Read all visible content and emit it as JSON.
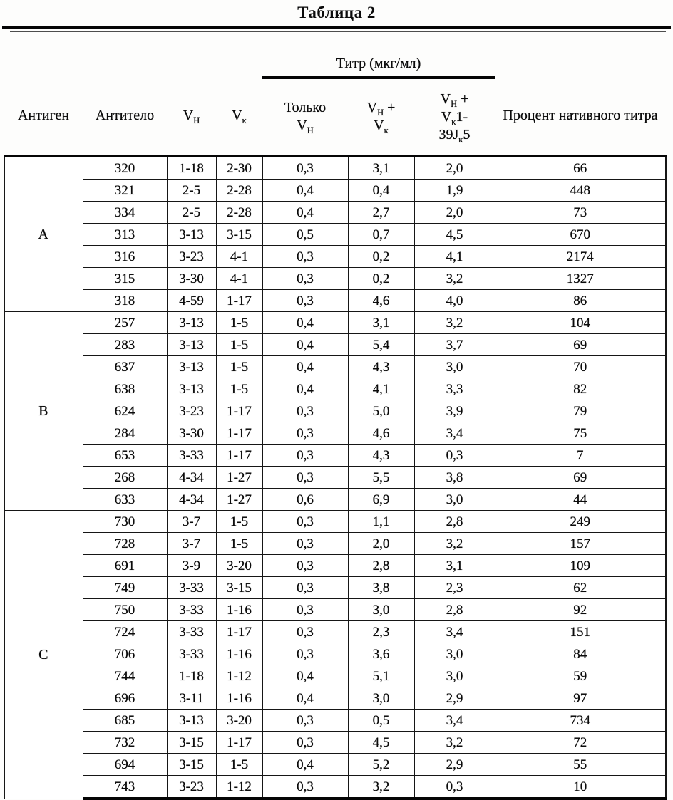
{
  "title": "Таблица 2",
  "table": {
    "header": {
      "antigen_label": "Антиген",
      "antibody_label": "Антитело",
      "vh_label": [
        [
          {
            "t": "V"
          },
          {
            "t": "H",
            "sub": true
          }
        ]
      ],
      "vk_label": [
        [
          {
            "t": "V"
          },
          {
            "t": "κ",
            "sub": true
          }
        ]
      ],
      "titer_group_label": "Титр (мкг/мл)",
      "titer_col_only_vh": [
        [
          {
            "t": "Только"
          }
        ],
        [
          {
            "t": "V"
          },
          {
            "t": "H",
            "sub": true
          }
        ]
      ],
      "titer_col_vh_vk": [
        [
          {
            "t": "V"
          },
          {
            "t": "H",
            "sub": true
          },
          {
            "t": " +"
          }
        ],
        [
          {
            "t": "V"
          },
          {
            "t": "κ",
            "sub": true
          }
        ]
      ],
      "titer_col_vh_vk1_39jk5": [
        [
          {
            "t": "V"
          },
          {
            "t": "H",
            "sub": true
          },
          {
            "t": " +"
          }
        ],
        [
          {
            "t": "V"
          },
          {
            "t": "κ",
            "sub": true
          },
          {
            "t": "1-"
          }
        ],
        [
          {
            "t": "39J"
          },
          {
            "t": "κ",
            "sub": true
          },
          {
            "t": "5"
          }
        ]
      ],
      "percent_label": "Процент нативного титра"
    },
    "groups": [
      {
        "antigen": "A",
        "rows": [
          [
            "320",
            "1-18",
            "2-30",
            "0,3",
            "3,1",
            "2,0",
            "66"
          ],
          [
            "321",
            "2-5",
            "2-28",
            "0,4",
            "0,4",
            "1,9",
            "448"
          ],
          [
            "334",
            "2-5",
            "2-28",
            "0,4",
            "2,7",
            "2,0",
            "73"
          ],
          [
            "313",
            "3-13",
            "3-15",
            "0,5",
            "0,7",
            "4,5",
            "670"
          ],
          [
            "316",
            "3-23",
            "4-1",
            "0,3",
            "0,2",
            "4,1",
            "2174"
          ],
          [
            "315",
            "3-30",
            "4-1",
            "0,3",
            "0,2",
            "3,2",
            "1327"
          ],
          [
            "318",
            "4-59",
            "1-17",
            "0,3",
            "4,6",
            "4,0",
            "86"
          ]
        ]
      },
      {
        "antigen": "B",
        "rows": [
          [
            "257",
            "3-13",
            "1-5",
            "0,4",
            "3,1",
            "3,2",
            "104"
          ],
          [
            "283",
            "3-13",
            "1-5",
            "0,4",
            "5,4",
            "3,7",
            "69"
          ],
          [
            "637",
            "3-13",
            "1-5",
            "0,4",
            "4,3",
            "3,0",
            "70"
          ],
          [
            "638",
            "3-13",
            "1-5",
            "0,4",
            "4,1",
            "3,3",
            "82"
          ],
          [
            "624",
            "3-23",
            "1-17",
            "0,3",
            "5,0",
            "3,9",
            "79"
          ],
          [
            "284",
            "3-30",
            "1-17",
            "0,3",
            "4,6",
            "3,4",
            "75"
          ],
          [
            "653",
            "3-33",
            "1-17",
            "0,3",
            "4,3",
            "0,3",
            "7"
          ],
          [
            "268",
            "4-34",
            "1-27",
            "0,3",
            "5,5",
            "3,8",
            "69"
          ],
          [
            "633",
            "4-34",
            "1-27",
            "0,6",
            "6,9",
            "3,0",
            "44"
          ]
        ]
      },
      {
        "antigen": "C",
        "rows": [
          [
            "730",
            "3-7",
            "1-5",
            "0,3",
            "1,1",
            "2,8",
            "249"
          ],
          [
            "728",
            "3-7",
            "1-5",
            "0,3",
            "2,0",
            "3,2",
            "157"
          ],
          [
            "691",
            "3-9",
            "3-20",
            "0,3",
            "2,8",
            "3,1",
            "109"
          ],
          [
            "749",
            "3-33",
            "3-15",
            "0,3",
            "3,8",
            "2,3",
            "62"
          ],
          [
            "750",
            "3-33",
            "1-16",
            "0,3",
            "3,0",
            "2,8",
            "92"
          ],
          [
            "724",
            "3-33",
            "1-17",
            "0,3",
            "2,3",
            "3,4",
            "151"
          ],
          [
            "706",
            "3-33",
            "1-16",
            "0,3",
            "3,6",
            "3,0",
            "84"
          ],
          [
            "744",
            "1-18",
            "1-12",
            "0,4",
            "5,1",
            "3,0",
            "59"
          ],
          [
            "696",
            "3-11",
            "1-16",
            "0,4",
            "3,0",
            "2,9",
            "97"
          ],
          [
            "685",
            "3-13",
            "3-20",
            "0,3",
            "0,5",
            "3,4",
            "734"
          ],
          [
            "732",
            "3-15",
            "1-17",
            "0,3",
            "4,5",
            "3,2",
            "72"
          ],
          [
            "694",
            "3-15",
            "1-5",
            "0,4",
            "5,2",
            "2,9",
            "55"
          ],
          [
            "743",
            "3-23",
            "1-12",
            "0,3",
            "3,2",
            "0,3",
            "10"
          ]
        ]
      }
    ],
    "body_column_names": [
      "antibody-cell",
      "vh-cell",
      "vk-cell",
      "titer-only-vh-cell",
      "titer-vh-vk-cell",
      "titer-vh-vk1-39jk5-cell",
      "percent-cell"
    ]
  },
  "colors": {
    "ink": "#0b0b0b",
    "paper": "#fdfdfc"
  }
}
